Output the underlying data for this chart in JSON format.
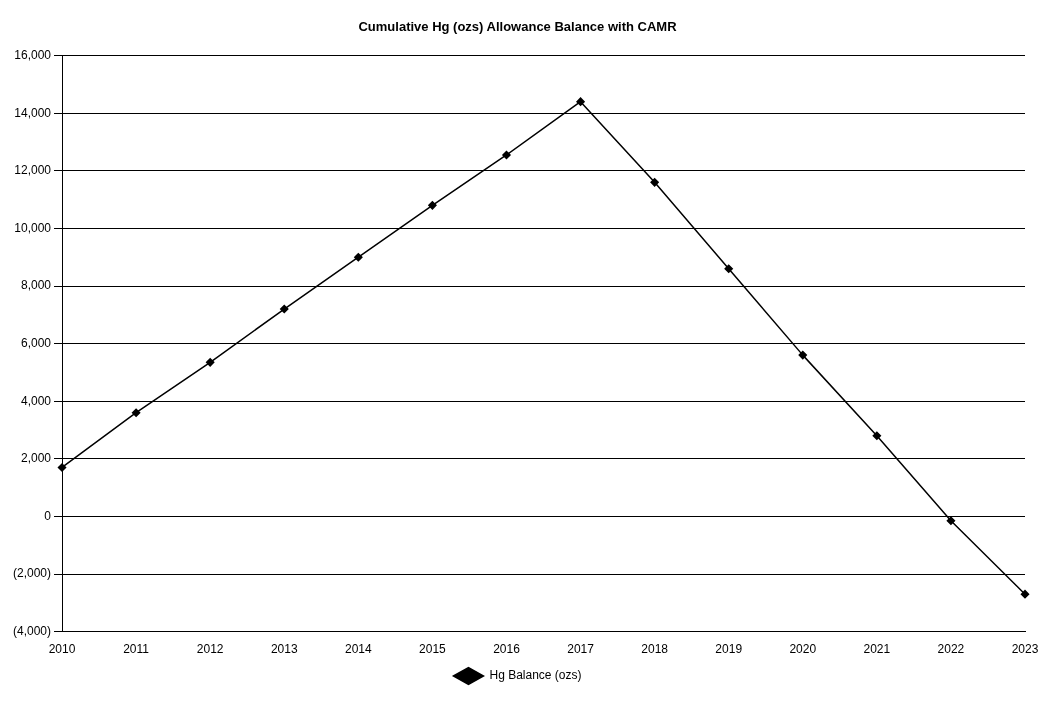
{
  "chart_data": {
    "type": "line",
    "title": "Cumulative Hg (ozs) Allowance Balance with CAMR",
    "categories": [
      "2010",
      "2011",
      "2012",
      "2013",
      "2014",
      "2015",
      "2016",
      "2017",
      "2018",
      "2019",
      "2020",
      "2021",
      "2022",
      "2023"
    ],
    "series": [
      {
        "name": "Hg Balance (ozs)",
        "color": "#000000",
        "values": [
          1700,
          3600,
          5350,
          7200,
          9000,
          10800,
          12550,
          14400,
          11600,
          8600,
          5600,
          2800,
          -150,
          -2700
        ]
      }
    ],
    "ylim": [
      -4000,
      16000
    ],
    "yticks": [
      {
        "value": -4000,
        "label": "(4,000)"
      },
      {
        "value": -2000,
        "label": "(2,000)"
      },
      0,
      {
        "value": 2000,
        "label": "2,000"
      },
      {
        "value": 4000,
        "label": "4,000"
      },
      {
        "value": 6000,
        "label": "6,000"
      },
      {
        "value": 8000,
        "label": "8,000"
      },
      {
        "value": 10000,
        "label": "10,000"
      },
      {
        "value": 12000,
        "label": "12,000"
      },
      {
        "value": 14000,
        "label": "14,000"
      },
      {
        "value": 16000,
        "label": "16,000"
      }
    ],
    "grid": "y",
    "legend": "bottom",
    "marker": "diamond",
    "line_style": "solid"
  }
}
